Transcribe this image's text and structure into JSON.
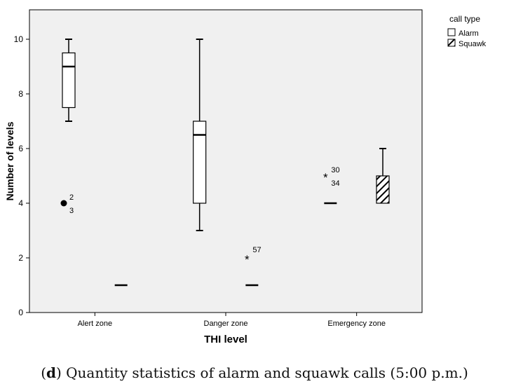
{
  "caption": {
    "open": "(",
    "letter": "d",
    "text": ") Quantity statistics of alarm and squawk calls (5:00 p.m.)"
  },
  "chart_data": {
    "type": "boxplot",
    "xlabel": "THI level",
    "ylabel": "Number of levels",
    "ylim": [
      0,
      11
    ],
    "yticks": [
      0,
      2,
      4,
      6,
      8,
      10
    ],
    "categories": [
      "Alert zone",
      "Danger zone",
      "Emergency zone"
    ],
    "legend": {
      "title": "call type",
      "position": "top-right"
    },
    "series": [
      {
        "name": "Alarm",
        "fill": "none",
        "boxes": [
          {
            "category": "Alert zone",
            "min": 7,
            "q1": 7.5,
            "median": 9,
            "q3": 9.5,
            "max": 10,
            "outliers": [
              {
                "value": 4,
                "marker": "circle",
                "labels": [
                  "2",
                  "3"
                ]
              }
            ]
          },
          {
            "category": "Danger zone",
            "min": 3,
            "q1": 4,
            "median": 6.5,
            "q3": 7,
            "max": 10,
            "outliers": []
          },
          {
            "category": "Emergency zone",
            "min": 4,
            "q1": 4,
            "median": 4,
            "q3": 4,
            "max": 4,
            "outliers": [
              {
                "value": 5,
                "marker": "star",
                "labels": [
                  "30",
                  "34"
                ]
              }
            ]
          }
        ]
      },
      {
        "name": "Squawk",
        "fill": "hatched",
        "boxes": [
          {
            "category": "Alert zone",
            "min": 1,
            "q1": 1,
            "median": 1,
            "q3": 1,
            "max": 1,
            "outliers": []
          },
          {
            "category": "Danger zone",
            "min": 1,
            "q1": 1,
            "median": 1,
            "q3": 1,
            "max": 1,
            "outliers": [
              {
                "value": 2,
                "marker": "star",
                "labels": [
                  "57"
                ]
              }
            ]
          },
          {
            "category": "Emergency zone",
            "min": 4,
            "q1": 4,
            "median": 4,
            "q3": 5,
            "max": 6,
            "outliers": []
          }
        ]
      }
    ]
  }
}
